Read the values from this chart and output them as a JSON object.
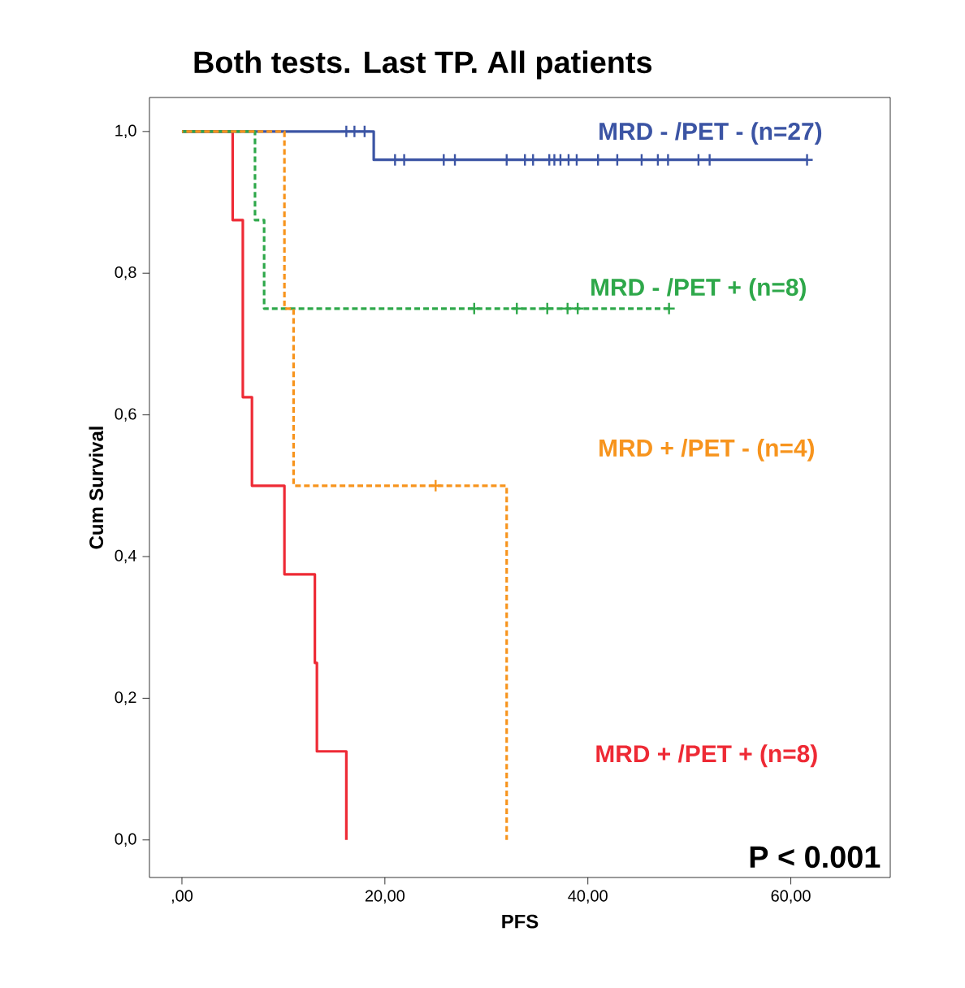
{
  "chart_data": {
    "type": "step",
    "title": "Both tests. Last TP. All patients",
    "xlabel": "PFS",
    "ylabel": "Cum Survival",
    "xlim": [
      -3.2,
      69.8
    ],
    "ylim": [
      -0.053,
      1.048
    ],
    "xticks": [
      {
        "value": 0,
        "label": ",00"
      },
      {
        "value": 20,
        "label": "20,00"
      },
      {
        "value": 40,
        "label": "40,00"
      },
      {
        "value": 60,
        "label": "60,00"
      }
    ],
    "yticks": [
      {
        "value": 0,
        "label": "0,0"
      },
      {
        "value": 0.2,
        "label": "0,2"
      },
      {
        "value": 0.4,
        "label": "0,4"
      },
      {
        "value": 0.6,
        "label": "0,6"
      },
      {
        "value": 0.8,
        "label": "0,8"
      },
      {
        "value": 1.0,
        "label": "1,0"
      }
    ],
    "annotations": [
      "P < 0.001"
    ],
    "legend": false,
    "series": [
      {
        "name": "MRD + /PET + (n=8)",
        "color": "#ee2a35",
        "line_style": "solid",
        "marker": "none",
        "x": [
          0,
          5,
          6,
          6.9,
          10.1,
          13.1,
          13.3,
          16.2
        ],
        "values": [
          1,
          0.875,
          0.625,
          0.5,
          0.375,
          0.25,
          0.125,
          0
        ]
      },
      {
        "name": "MRD - /PET - (n=27)",
        "color": "#3b54a4",
        "line_style": "solid",
        "marker": "none",
        "x": [
          0,
          18.9,
          61.6
        ],
        "values": [
          1,
          0.96,
          0.96
        ]
      },
      {
        "name": "MRD - /PET + (n=8)",
        "color": "#2ea84a",
        "line_style": "dashed",
        "marker": "none",
        "x": [
          0,
          7.2,
          8.1,
          48
        ],
        "values": [
          1,
          0.875,
          0.75,
          0.75
        ]
      },
      {
        "name": "MRD + /PET - (n=4)",
        "color": "#f7941d",
        "line_style": "dashed",
        "marker": "none",
        "x": [
          0,
          10.1,
          11,
          32
        ],
        "values": [
          1,
          0.75,
          0.5,
          0
        ]
      },
      {
        "type": "scatter",
        "color": "#3b54a4",
        "marker": "cross",
        "x": [
          16.2,
          17,
          18,
          21,
          21.9,
          25.8,
          26.9,
          32,
          33.8,
          34.6,
          36.2,
          36.7,
          37.3,
          38.1,
          38.9,
          41,
          42.9,
          45.3,
          46.9,
          47.9,
          50.9,
          52,
          61.6
        ],
        "values": [
          1,
          1,
          1,
          0.96,
          0.96,
          0.96,
          0.96,
          0.96,
          0.96,
          0.96,
          0.96,
          0.96,
          0.96,
          0.96,
          0.96,
          0.96,
          0.96,
          0.96,
          0.96,
          0.96,
          0.96,
          0.96,
          0.96
        ]
      },
      {
        "type": "scatter",
        "color": "#2ea84a",
        "marker": "cross",
        "x": [
          28.8,
          33,
          36,
          38,
          39,
          48
        ],
        "values": [
          0.75,
          0.75,
          0.75,
          0.75,
          0.75,
          0.75
        ]
      },
      {
        "type": "scatter",
        "color": "#f7941d",
        "marker": "cross",
        "x": [
          25
        ],
        "values": [
          0.5
        ]
      }
    ]
  }
}
